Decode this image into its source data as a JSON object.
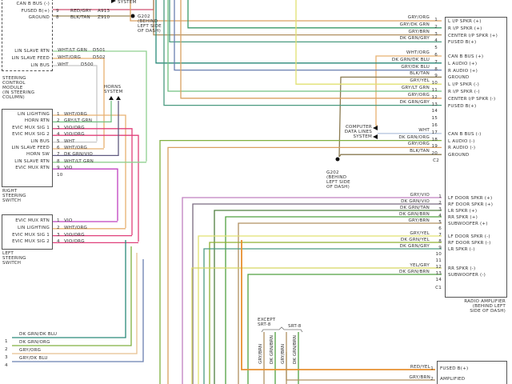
{
  "steering_control_module": {
    "label": "STEERING\nCONTROL\nMODULE\n(IN STEERING\nCOLUMN)",
    "pins_top": [
      {
        "name": "CAN B BUS (-)",
        "pin": "",
        "wire": "",
        "circuit": "",
        "color": "#d05070"
      },
      {
        "name": "FUSED B(+)",
        "pin": "9",
        "wire": "RED/GRY",
        "circuit": "A913",
        "color": "#d05070"
      },
      {
        "name": "GROUND",
        "pin": "8",
        "wire": "BLK/TAN",
        "circuit": "Z910",
        "color": "#9a8a5a"
      }
    ],
    "pins_lin": [
      {
        "name": "LIN SLAVE RTN",
        "wire": "WHT/LT GRN",
        "circuit": "D501",
        "color": "#90d090"
      },
      {
        "name": "LIN SLAVE FEED",
        "wire": "WHT/ORG",
        "circuit": "D502",
        "color": "#e8b070"
      },
      {
        "name": "LIN BUS",
        "wire": "WHT",
        "circuit": "D500",
        "color": "#c8c8c8"
      }
    ],
    "system_label": "SYSTEM",
    "ground_label": "G202\n(BEHIND\nLEFT SIDE\nOF DASH)"
  },
  "horns_label": "HORNS\nSYSTEM",
  "right_steering_switch": {
    "label": "RIGHT\nSTEERING\nSWITCH",
    "pins": [
      {
        "name": "LIN LIGHTING",
        "pin": "1",
        "wire": "WHT/ORG",
        "color": "#e8b070"
      },
      {
        "name": "HORN RTN",
        "pin": "2",
        "wire": "GRY/LT GRN",
        "color": "#70c080"
      },
      {
        "name": "EVIC MUX SIG 1",
        "pin": "3",
        "wire": "VIO/ORG",
        "color": "#e0407a"
      },
      {
        "name": "EVIC MUX SIG 2",
        "pin": "4",
        "wire": "VIO/ORG",
        "color": "#e0407a"
      },
      {
        "name": "LIN BUS",
        "pin": "5",
        "wire": "WHT",
        "color": "#c8c8c8"
      },
      {
        "name": "LIN SLAVE FEED",
        "pin": "6",
        "wire": "WHT/ORG",
        "color": "#e8b070"
      },
      {
        "name": "HORN SW",
        "pin": "7",
        "wire": "DK GRN/VIO",
        "color": "#605a80"
      },
      {
        "name": "LIN SLAVE RTN",
        "pin": "8",
        "wire": "WHT/LT GRN",
        "color": "#90d090"
      },
      {
        "name": "EVIC MUX RTN",
        "pin": "9",
        "wire": "VIO",
        "color": "#c040c0"
      },
      {
        "name": "",
        "pin": "10",
        "wire": "",
        "color": ""
      }
    ]
  },
  "left_steering_switch": {
    "label": "LEFT\nSTEERING\nSWITCH",
    "pins": [
      {
        "name": "EVIC MUX RTN",
        "pin": "1",
        "wire": "VIO",
        "color": "#c040c0"
      },
      {
        "name": "LIN LIGHTING",
        "pin": "2",
        "wire": "WHT/ORG",
        "color": "#e8b070"
      },
      {
        "name": "EVIC MUX SIG 1",
        "pin": "3",
        "wire": "VIO/ORG",
        "color": "#e0407a"
      },
      {
        "name": "EVIC MUX SIG 2",
        "pin": "4",
        "wire": "VIO/ORG",
        "color": "#e0407a"
      }
    ]
  },
  "radio_amplifier": {
    "label": "RADIO AMPLIFIER\n(BEHIND LEFT\nSIDE OF DASH)",
    "c2_label": "C2",
    "c1_label": "C1",
    "c2_pins": [
      {
        "pin": "1",
        "wire": "GRY/ORG",
        "name": "L I/P SPKR (+)",
        "color": "#d9a060"
      },
      {
        "pin": "2",
        "wire": "GRY/DK GRN",
        "name": "R I/P SPKR (+)",
        "color": "#3a9a6a"
      },
      {
        "pin": "3",
        "wire": "GRY/BRN",
        "name": "CENTER I/P SPKR (+)",
        "color": "#b09060"
      },
      {
        "pin": "4",
        "wire": "DK GRN/GRY",
        "name": "FUSED B(+)",
        "color": "#4a9a80"
      },
      {
        "pin": "5",
        "wire": "",
        "name": "",
        "color": ""
      },
      {
        "pin": "6",
        "wire": "WHT/ORG",
        "name": "CAN B BUS (+)",
        "color": "#e8b070"
      },
      {
        "pin": "7",
        "wire": "DK GRN/DK BLU",
        "name": "L AUDIO (+)",
        "color": "#2a8a7a"
      },
      {
        "pin": "8",
        "wire": "GRY/DK BLU",
        "name": "R AUDIO (+)",
        "color": "#6a80b0"
      },
      {
        "pin": "9",
        "wire": "BLK/TAN",
        "name": "GROUND",
        "color": "#8a7a50"
      },
      {
        "pin": "10",
        "wire": "GRY/YEL",
        "name": "L I/P SPKR (-)",
        "color": "#e0e070"
      },
      {
        "pin": "11",
        "wire": "GRY/LT GRN",
        "name": "R I/P SPKR (-)",
        "color": "#70c080"
      },
      {
        "pin": "12",
        "wire": "GRY/ORG",
        "name": "CENTER I/P SPKR (-)",
        "color": "#d9a060"
      },
      {
        "pin": "13",
        "wire": "DK GRN/GRY",
        "name": "FUSED B(+)",
        "color": "#4a9a80"
      },
      {
        "pin": "14",
        "wire": "",
        "name": "",
        "color": ""
      },
      {
        "pin": "15",
        "wire": "",
        "name": "",
        "color": ""
      },
      {
        "pin": "16",
        "wire": "",
        "name": "",
        "color": ""
      },
      {
        "pin": "17",
        "wire": "WHT",
        "name": "CAN B BUS (-)",
        "color": "#b8c8e0"
      },
      {
        "pin": "18",
        "wire": "DK GRN/ORG",
        "name": "L AUDIO (-)",
        "color": "#80b040"
      },
      {
        "pin": "19",
        "wire": "GRY/ORG",
        "name": "R AUDIO (-)",
        "color": "#d9a060"
      },
      {
        "pin": "20",
        "wire": "BLK/TAN",
        "name": "GROUND",
        "color": "#8a7a50"
      }
    ],
    "c1_pins": [
      {
        "pin": "1",
        "wire": "GRY/VIO",
        "name": "LF DOOR SPKR (+)",
        "color": "#c080c0"
      },
      {
        "pin": "2",
        "wire": "DK GRN/VIO",
        "name": "RF DOOR SPKR (+)",
        "color": "#7a6a80"
      },
      {
        "pin": "3",
        "wire": "DK GRN/TAN",
        "name": "LR SPKR (+)",
        "color": "#508040"
      },
      {
        "pin": "4",
        "wire": "DK GRN/BRN",
        "name": "RR SPKR (+)",
        "color": "#50a040"
      },
      {
        "pin": "5",
        "wire": "GRY/BRN",
        "name": "SUBWOOFER (+)",
        "color": "#b09060"
      },
      {
        "pin": "6",
        "wire": "",
        "name": "",
        "color": ""
      },
      {
        "pin": "7",
        "wire": "GRY/YEL",
        "name": "LF DOOR SPKR (-)",
        "color": "#e0e070"
      },
      {
        "pin": "8",
        "wire": "DK GRN/YEL",
        "name": "RF DOOR SPKR (-)",
        "color": "#90b030"
      },
      {
        "pin": "9",
        "wire": "DK GRN/GRY",
        "name": "LR SPKR (-)",
        "color": "#4a9a80"
      },
      {
        "pin": "10",
        "wire": "",
        "name": "",
        "color": ""
      },
      {
        "pin": "11",
        "wire": "",
        "name": "",
        "color": ""
      },
      {
        "pin": "12",
        "wire": "YEL/GRY",
        "name": "RR SPKR (-)",
        "color": "#d8d860"
      },
      {
        "pin": "13",
        "wire": "DK GRN/BRN",
        "name": "SUBWOOFER (-)",
        "color": "#50a040"
      },
      {
        "pin": "14",
        "wire": "",
        "name": "",
        "color": ""
      }
    ]
  },
  "computer_data_lines": "COMPUTER\nDATA LINES\nSYSTEM",
  "ground_g202": "G202\n(BEHIND\nLEFT SIDE\nOF DASH)",
  "bottom_left_wires": [
    {
      "pin": "1",
      "wire": "DK GRN/DK BLU",
      "color": "#2a8a7a"
    },
    {
      "pin": "2",
      "wire": "DK GRN/ORG",
      "color": "#80b040"
    },
    {
      "pin": "3",
      "wire": "GRY/ORG",
      "color": "#e8c090"
    },
    {
      "pin": "4",
      "wire": "GRY/DK BLU",
      "color": "#6a80b0"
    }
  ],
  "srt": {
    "except_label": "EXCEPT\nSRT-8",
    "srt_label": "SRT-8",
    "wires": [
      {
        "wire": "GRY/BRN",
        "color": "#b09060"
      },
      {
        "wire": "DK GRN/BRN",
        "color": "#50a040"
      },
      {
        "wire": "GRY/BRN",
        "color": "#b09060"
      },
      {
        "wire": "DK GRN/BRN",
        "color": "#50a040"
      }
    ]
  },
  "bottom_connector": {
    "pins": [
      {
        "pin": "1",
        "wire": "RED/YEL",
        "name": "FUSED B(+)",
        "color": "#e89030"
      },
      {
        "pin": "2",
        "wire": "GRY/BRN",
        "name": "AMPLIFIED",
        "color": "#b09060"
      }
    ]
  }
}
